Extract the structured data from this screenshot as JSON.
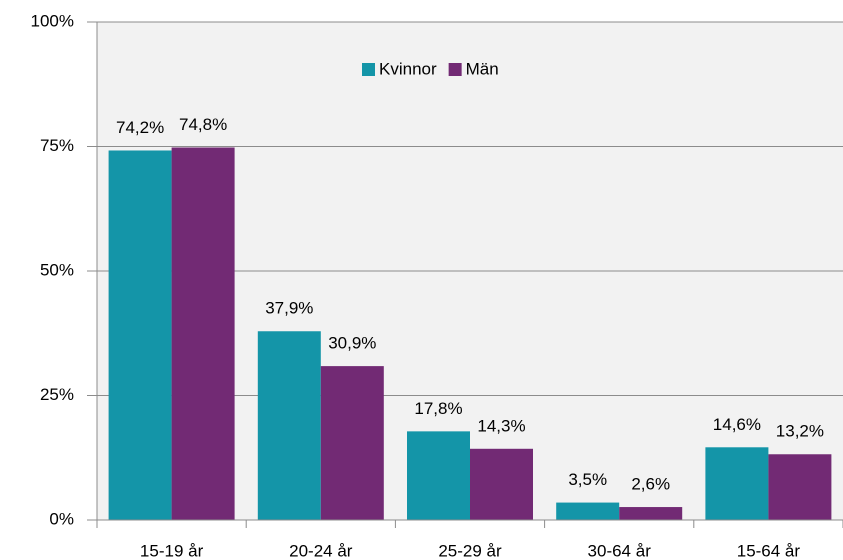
{
  "chart_data": {
    "type": "bar",
    "categories": [
      "15-19 år",
      "20-24 år",
      "25-29 år",
      "30-64 år",
      "15-64 år"
    ],
    "series": [
      {
        "name": "Kvinnor",
        "color": "#1495a8",
        "values": [
          74.2,
          37.9,
          17.8,
          3.5,
          14.6
        ],
        "value_labels": [
          "74,2%",
          "37,9%",
          "17,8%",
          "3,5%",
          "14,6%"
        ]
      },
      {
        "name": "Män",
        "color": "#722a74",
        "values": [
          74.8,
          30.9,
          14.3,
          2.6,
          13.2
        ],
        "value_labels": [
          "74,8%",
          "30,9%",
          "14,3%",
          "2,6%",
          "13,2%"
        ]
      }
    ],
    "ylim": [
      0,
      100
    ],
    "yticks": [
      {
        "value": 0,
        "label": "0%"
      },
      {
        "value": 25,
        "label": "25%"
      },
      {
        "value": 50,
        "label": "50%"
      },
      {
        "value": 75,
        "label": "75%"
      },
      {
        "value": 100,
        "label": "100%"
      }
    ],
    "grid": true,
    "legend": "top"
  }
}
